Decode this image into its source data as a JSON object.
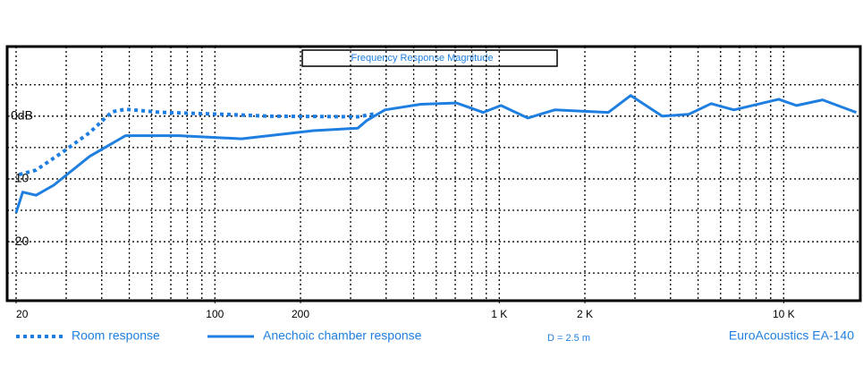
{
  "chart_data": {
    "type": "line",
    "title": "Frequency Response Magnitude",
    "annotations": [
      "D = 2.5 m",
      "EuroAcoustics EA-140"
    ],
    "xscale": "log",
    "xlim": [
      18.6,
      18600
    ],
    "xticks": [
      20,
      100,
      200,
      {
        "value": 1000,
        "label": "1 K"
      },
      {
        "value": 2000,
        "label": "2 K"
      },
      {
        "value": 10000,
        "label": "10 K"
      }
    ],
    "xgrid": [
      20,
      30,
      40,
      50,
      60,
      70,
      80,
      90,
      100,
      200,
      300,
      400,
      500,
      600,
      700,
      800,
      900,
      1000,
      2000,
      3000,
      4000,
      5000,
      6000,
      7000,
      8000,
      9000,
      10000
    ],
    "ylim": [
      -29.4,
      11.1
    ],
    "yticks": [
      {
        "value": 0,
        "label": "0dB"
      },
      -10,
      -20
    ],
    "ygrid": [
      5,
      0,
      -5,
      -10,
      -15,
      -20,
      -25
    ],
    "grid": true,
    "series": [
      {
        "name": "Room response",
        "color": "#1f7fe0",
        "style": "dotted",
        "x": [
          20.5,
          23.5,
          29.2,
          36.3,
          43.5,
          48.5,
          64.7,
          107,
          154,
          318,
          368
        ],
        "values": [
          -9.3,
          -8.6,
          -5.7,
          -2.6,
          0.7,
          1.1,
          0.6,
          0.3,
          0,
          -0.1,
          0.4
        ]
      },
      {
        "name": "Anechoic chamber response",
        "color": "#1f7fe0",
        "style": "solid",
        "x": [
          20,
          21.1,
          23.5,
          27.1,
          36.3,
          48.5,
          74.8,
          124,
          222,
          318,
          342,
          396,
          529,
          707,
          877,
          1014,
          1260,
          1565,
          2420,
          2900,
          3740,
          4640,
          5560,
          6680,
          9600,
          11100,
          13700,
          18000
        ],
        "values": [
          -15.4,
          -12.1,
          -12.6,
          -11,
          -6.4,
          -3.1,
          -3.1,
          -3.6,
          -2.3,
          -1.9,
          -0.7,
          1,
          1.9,
          2.1,
          0.6,
          1.7,
          -0.3,
          1,
          0.6,
          3.3,
          0,
          0.3,
          2,
          1,
          2.7,
          1.7,
          2.6,
          0.6
        ]
      }
    ]
  }
}
